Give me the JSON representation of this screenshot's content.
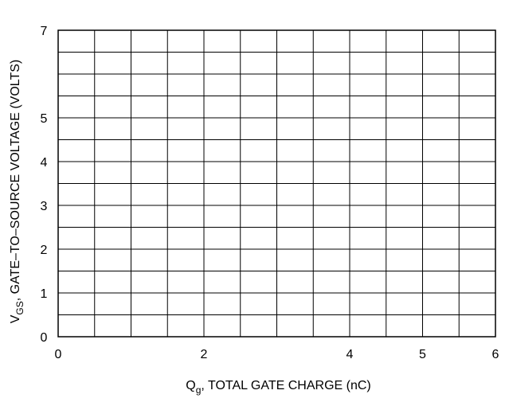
{
  "chart_data": {
    "type": "line",
    "title": "",
    "xlabel": {
      "symbol": "Q",
      "subscript": "g",
      "text": ", TOTAL GATE CHARGE (nC)"
    },
    "ylabel": {
      "symbol": "V",
      "subscript": "GS",
      "text": ", GATE–TO–SOURCE VOLTAGE (VOLTS)"
    },
    "xlim": [
      0,
      6
    ],
    "ylim": [
      0,
      7
    ],
    "x_tick_labels": [
      {
        "value": 0,
        "label": "0"
      },
      {
        "value": 2,
        "label": "2"
      },
      {
        "value": 4,
        "label": "4"
      },
      {
        "value": 5,
        "label": "5"
      },
      {
        "value": 6,
        "label": "6"
      }
    ],
    "y_tick_labels": [
      {
        "value": 0,
        "label": "0"
      },
      {
        "value": 1,
        "label": "1"
      },
      {
        "value": 2,
        "label": "2"
      },
      {
        "value": 3,
        "label": "3"
      },
      {
        "value": 4,
        "label": "4"
      },
      {
        "value": 5,
        "label": "5"
      },
      {
        "value": 7,
        "label": "7"
      }
    ],
    "x_grid_step": 0.5,
    "y_grid_step": 0.5,
    "grid": true,
    "series": []
  }
}
